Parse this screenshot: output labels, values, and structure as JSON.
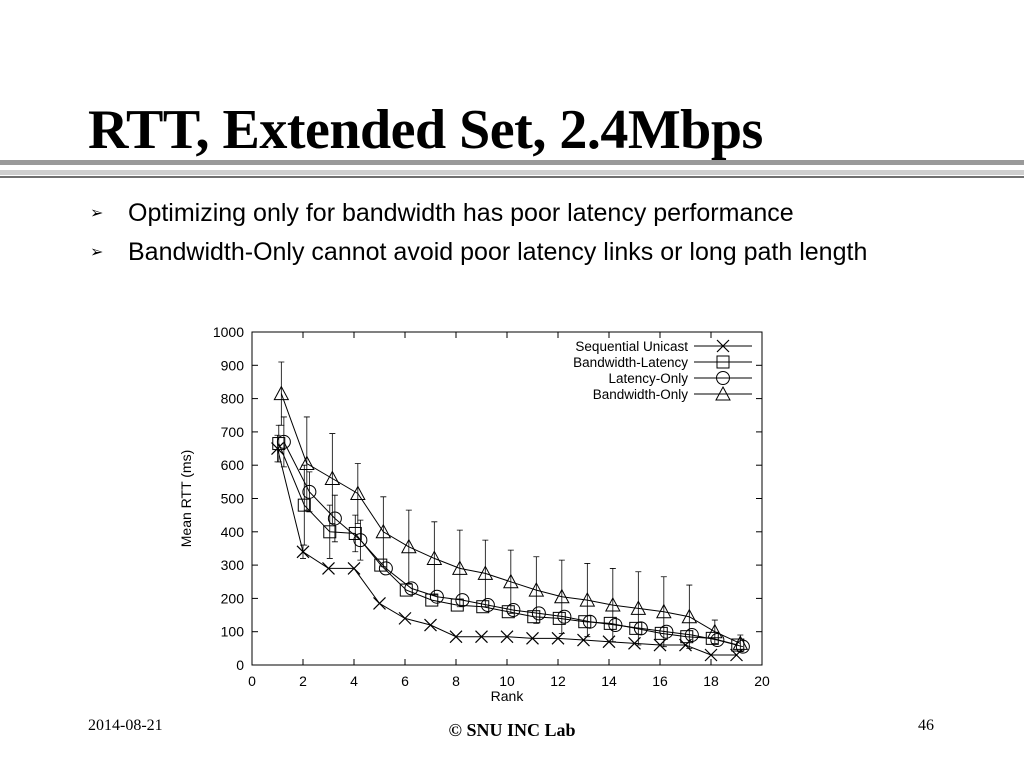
{
  "slide": {
    "title": "RTT, Extended Set, 2.4Mbps",
    "bullets": [
      "Optimizing only for bandwidth has poor latency performance",
      "Bandwidth-Only cannot avoid poor latency links or long path length"
    ],
    "bullet_glyph": "➢",
    "footer": {
      "date": "2014-08-21",
      "center": "© SNU INC Lab",
      "page": "46"
    }
  },
  "chart_data": {
    "type": "line",
    "xlabel": "Rank",
    "ylabel": "Mean RTT (ms)",
    "xlim": [
      0,
      20
    ],
    "ylim": [
      0,
      1000
    ],
    "xticks": [
      0,
      2,
      4,
      6,
      8,
      10,
      12,
      14,
      16,
      18,
      20
    ],
    "yticks": [
      0,
      100,
      200,
      300,
      400,
      500,
      600,
      700,
      800,
      900,
      1000
    ],
    "grid": false,
    "legend_position": "top-right",
    "series": [
      {
        "name": "Sequential Unicast",
        "marker": "x",
        "x": [
          1.0,
          2.0,
          3.0,
          4.0,
          5.0,
          6.0,
          7.0,
          8.0,
          9.0,
          10.0,
          11.0,
          12.0,
          13.0,
          14.0,
          15.0,
          16.0,
          17.0,
          18.0,
          19.0
        ],
        "y": [
          650,
          340,
          290,
          290,
          185,
          140,
          120,
          85,
          85,
          85,
          80,
          80,
          75,
          70,
          65,
          60,
          60,
          30,
          30
        ],
        "err": [
          40,
          20,
          0,
          0,
          0,
          0,
          0,
          0,
          0,
          0,
          0,
          0,
          0,
          0,
          0,
          0,
          0,
          0,
          0
        ]
      },
      {
        "name": "Bandwidth-Latency",
        "marker": "square",
        "x": [
          1.05,
          2.05,
          3.05,
          4.05,
          5.05,
          6.05,
          7.05,
          8.05,
          9.05,
          10.05,
          11.05,
          12.05,
          13.05,
          14.05,
          15.05,
          16.05,
          17.05,
          18.05,
          19.05
        ],
        "y": [
          665,
          480,
          400,
          395,
          300,
          225,
          195,
          180,
          175,
          160,
          145,
          140,
          130,
          125,
          110,
          95,
          85,
          80,
          60
        ],
        "err": [
          55,
          120,
          80,
          55,
          0,
          0,
          0,
          0,
          0,
          0,
          0,
          0,
          0,
          0,
          0,
          0,
          0,
          0,
          0
        ]
      },
      {
        "name": "Latency-Only",
        "marker": "circle",
        "x": [
          1.25,
          2.25,
          3.25,
          4.25,
          5.25,
          6.25,
          7.25,
          8.25,
          9.25,
          10.25,
          11.25,
          12.25,
          13.25,
          14.25,
          15.25,
          16.25,
          17.25,
          18.25,
          19.25
        ],
        "y": [
          670,
          520,
          440,
          375,
          290,
          230,
          205,
          195,
          180,
          165,
          155,
          145,
          130,
          120,
          110,
          100,
          90,
          75,
          55
        ],
        "err": [
          75,
          60,
          70,
          60,
          0,
          0,
          0,
          0,
          0,
          0,
          0,
          0,
          0,
          0,
          0,
          0,
          0,
          0,
          0
        ]
      },
      {
        "name": "Bandwidth-Only",
        "marker": "triangle",
        "x": [
          1.15,
          2.15,
          3.15,
          4.15,
          5.15,
          6.15,
          7.15,
          8.15,
          9.15,
          10.15,
          11.15,
          12.15,
          13.15,
          14.15,
          15.15,
          16.15,
          17.15,
          18.15,
          19.15
        ],
        "y": [
          815,
          605,
          560,
          515,
          400,
          355,
          320,
          290,
          275,
          250,
          225,
          205,
          195,
          180,
          170,
          160,
          145,
          100,
          65
        ],
        "err": [
          95,
          140,
          135,
          90,
          105,
          110,
          110,
          115,
          100,
          95,
          100,
          110,
          110,
          110,
          110,
          105,
          95,
          35,
          25
        ]
      }
    ]
  }
}
